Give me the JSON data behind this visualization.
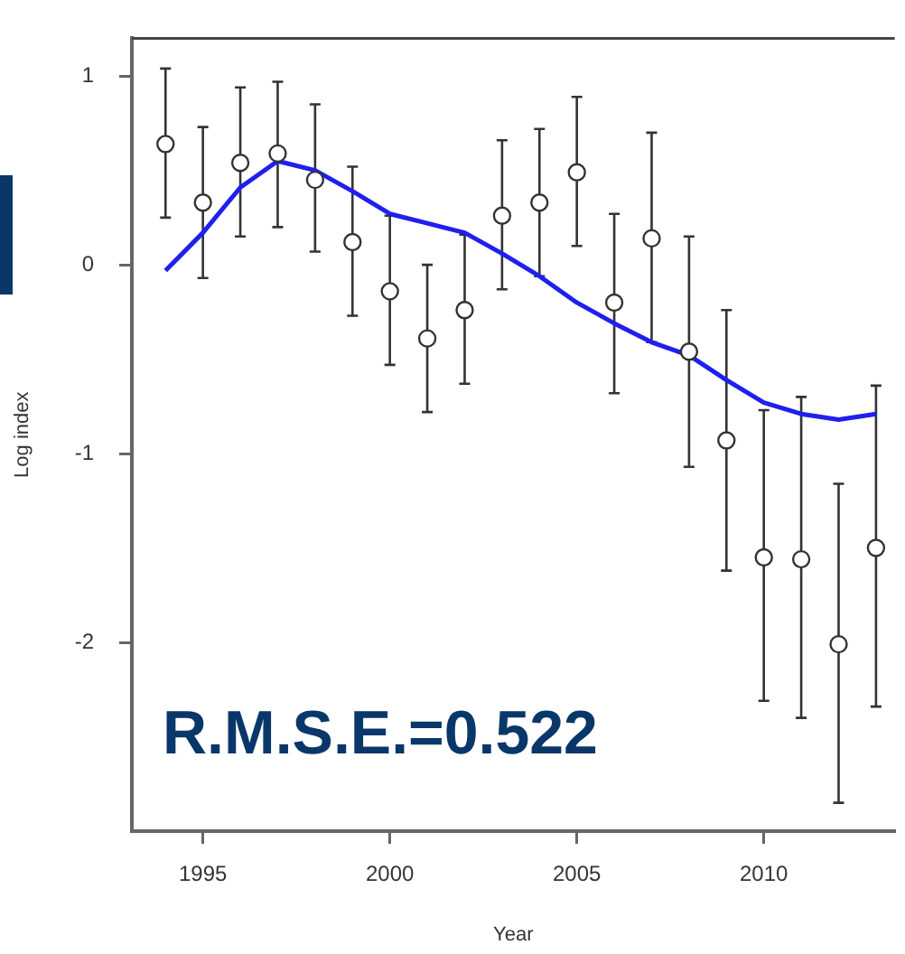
{
  "chart_data": {
    "type": "scatter",
    "xlabel": "Year",
    "ylabel": "Log index",
    "x": [
      1994,
      1995,
      1996,
      1997,
      1998,
      1999,
      2000,
      2001,
      2002,
      2003,
      2004,
      2005,
      2006,
      2007,
      2008,
      2009,
      2010,
      2011,
      2012,
      2013
    ],
    "series": [
      {
        "type": "scatter",
        "color": "#333333",
        "marker": "circle",
        "values": [
          0.64,
          0.33,
          0.54,
          0.59,
          0.45,
          0.12,
          -0.14,
          -0.39,
          -0.24,
          0.26,
          0.33,
          0.49,
          -0.2,
          0.14,
          -0.46,
          -0.93,
          -1.55,
          -1.56,
          -2.01,
          -1.5
        ],
        "errors": [
          [
            0.25,
            1.04
          ],
          [
            -0.07,
            0.73
          ],
          [
            0.15,
            0.94
          ],
          [
            0.2,
            0.97
          ],
          [
            0.07,
            0.85
          ],
          [
            -0.27,
            0.52
          ],
          [
            -0.53,
            0.26
          ],
          [
            -0.78,
            0
          ],
          [
            -0.63,
            0.16
          ],
          [
            -0.13,
            0.66
          ],
          [
            -0.06,
            0.72
          ],
          [
            0.1,
            0.89
          ],
          [
            -0.68,
            0.27
          ],
          [
            -0.41,
            0.7
          ],
          [
            -1.07,
            0.15
          ],
          [
            -1.62,
            -0.24
          ],
          [
            -2.31,
            -0.77
          ],
          [
            -2.4,
            -0.7
          ],
          [
            -2.85,
            -1.16
          ],
          [
            -2.34,
            -0.64
          ]
        ]
      },
      {
        "type": "line",
        "color": "#1f1fee",
        "marker": "none",
        "line_style": "solid",
        "values": [
          -0.03,
          0.17,
          0.41,
          0.55,
          0.5,
          0.39,
          0.27,
          0.22,
          0.17,
          0.06,
          -0.06,
          -0.2,
          -0.31,
          -0.41,
          -0.48,
          -0.61,
          -0.73,
          -0.79,
          -0.82,
          -0.79
        ]
      }
    ],
    "xlim": [
      1993.1,
      2013.5
    ],
    "xticks": [
      1995,
      2000,
      2005,
      2010
    ],
    "ylim": [
      -3.0,
      1.2
    ],
    "yticks": [
      -2,
      -1,
      0,
      1
    ],
    "annotations": [
      "R.M.S.E.=0.522"
    ]
  }
}
